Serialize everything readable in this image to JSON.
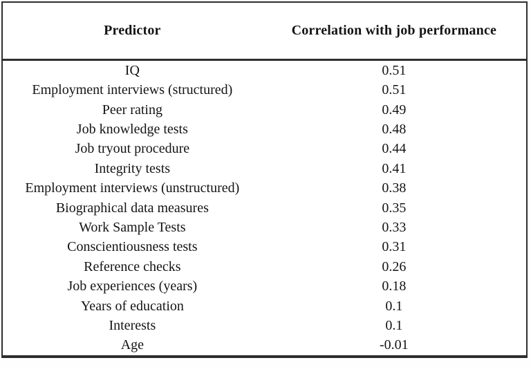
{
  "table": {
    "columns": [
      "Predictor",
      "Correlation with job performance"
    ],
    "rows": [
      {
        "predictor": "IQ",
        "correlation": "0.51"
      },
      {
        "predictor": "Employment interviews (structured)",
        "correlation": "0.51"
      },
      {
        "predictor": "Peer rating",
        "correlation": "0.49"
      },
      {
        "predictor": "Job knowledge tests",
        "correlation": "0.48"
      },
      {
        "predictor": "Job tryout procedure",
        "correlation": "0.44"
      },
      {
        "predictor": "Integrity tests",
        "correlation": "0.41"
      },
      {
        "predictor": "Employment interviews (unstructured)",
        "correlation": "0.38"
      },
      {
        "predictor": "Biographical data measures",
        "correlation": "0.35"
      },
      {
        "predictor": "Work Sample Tests",
        "correlation": "0.33"
      },
      {
        "predictor": "Conscientiousness tests",
        "correlation": "0.31"
      },
      {
        "predictor": "Reference checks",
        "correlation": "0.26"
      },
      {
        "predictor": "Job experiences (years)",
        "correlation": "0.18"
      },
      {
        "predictor": "Years of education",
        "correlation": "0.1"
      },
      {
        "predictor": "Interests",
        "correlation": "0.1"
      },
      {
        "predictor": "Age",
        "correlation": "-0.01"
      }
    ],
    "colors": {
      "text": "#141414",
      "border": "#2e2e2e",
      "background": "#ffffff"
    }
  }
}
